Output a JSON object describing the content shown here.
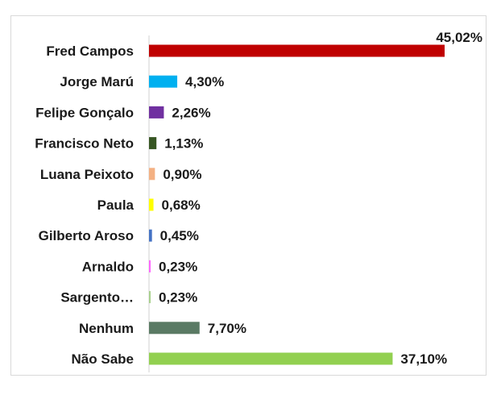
{
  "chart_data": {
    "type": "bar",
    "orientation": "horizontal",
    "categories": [
      "Fred Campos",
      "Jorge Marú",
      "Felipe Gonçalo",
      "Francisco Neto",
      "Luana Peixoto",
      "Paula",
      "Gilberto Aroso",
      "Arnaldo",
      "Sargento…",
      "Nenhum",
      "Não Sabe"
    ],
    "values": [
      45.02,
      4.3,
      2.26,
      1.13,
      0.9,
      0.68,
      0.45,
      0.23,
      0.23,
      7.7,
      37.1
    ],
    "value_labels": [
      "45,02%",
      "4,30%",
      "2,26%",
      "1,13%",
      "0,90%",
      "0,68%",
      "0,45%",
      "0,23%",
      "0,23%",
      "7,70%",
      "37,10%"
    ],
    "colors": [
      "#c00000",
      "#00b0f0",
      "#7030a0",
      "#375623",
      "#f4b183",
      "#ffff00",
      "#4472c4",
      "#ff66ff",
      "#a9d18e",
      "#5a7a64",
      "#92d050"
    ],
    "title": "",
    "xlabel": "",
    "ylabel": "",
    "xlim": [
      0,
      45.02
    ],
    "grid": false,
    "legend": "none"
  }
}
